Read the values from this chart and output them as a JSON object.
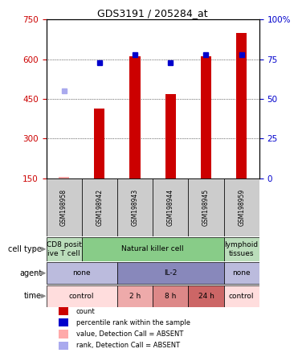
{
  "title": "GDS3191 / 205284_at",
  "samples": [
    "GSM198958",
    "GSM198942",
    "GSM198943",
    "GSM198944",
    "GSM198945",
    "GSM198959"
  ],
  "counts": [
    155,
    415,
    612,
    468,
    610,
    700
  ],
  "percentile_ranks": [
    null,
    73,
    78,
    73,
    78,
    78
  ],
  "absent_values": [
    155,
    null,
    null,
    null,
    null,
    null
  ],
  "absent_ranks": [
    480,
    null,
    null,
    null,
    null,
    null
  ],
  "ylim_left": [
    150,
    750
  ],
  "ylim_right": [
    0,
    100
  ],
  "yticks_left": [
    150,
    300,
    450,
    600,
    750
  ],
  "yticks_right": [
    0,
    25,
    50,
    75,
    100
  ],
  "bar_color": "#cc0000",
  "dot_color": "#0000cc",
  "absent_bar_color": "#ffaaaa",
  "absent_dot_color": "#aaaaee",
  "cell_type_row": {
    "label": "cell type",
    "cells": [
      {
        "text": "CD8 posit\nive T cell",
        "color": "#bbddbb",
        "span": 1
      },
      {
        "text": "Natural killer cell",
        "color": "#88cc88",
        "span": 4
      },
      {
        "text": "lymphoid\ntissues",
        "color": "#bbddbb",
        "span": 1
      }
    ]
  },
  "agent_row": {
    "label": "agent",
    "cells": [
      {
        "text": "none",
        "color": "#bbbbdd",
        "span": 2
      },
      {
        "text": "IL-2",
        "color": "#8888bb",
        "span": 3
      },
      {
        "text": "none",
        "color": "#bbbbdd",
        "span": 1
      }
    ]
  },
  "time_row": {
    "label": "time",
    "cells": [
      {
        "text": "control",
        "color": "#ffdddd",
        "span": 2
      },
      {
        "text": "2 h",
        "color": "#eeaaaa",
        "span": 1
      },
      {
        "text": "8 h",
        "color": "#dd8888",
        "span": 1
      },
      {
        "text": "24 h",
        "color": "#cc6666",
        "span": 1
      },
      {
        "text": "control",
        "color": "#ffdddd",
        "span": 1
      }
    ]
  },
  "legend_items": [
    {
      "color": "#cc0000",
      "marker": "s",
      "text": "count"
    },
    {
      "color": "#0000cc",
      "marker": "s",
      "text": "percentile rank within the sample"
    },
    {
      "color": "#ffaaaa",
      "marker": "s",
      "text": "value, Detection Call = ABSENT"
    },
    {
      "color": "#aaaaee",
      "marker": "s",
      "text": "rank, Detection Call = ABSENT"
    }
  ],
  "sample_col_color": "#cccccc",
  "left_axis_color": "#cc0000",
  "right_axis_color": "#0000cc",
  "figsize": [
    3.71,
    4.44
  ],
  "dpi": 100
}
